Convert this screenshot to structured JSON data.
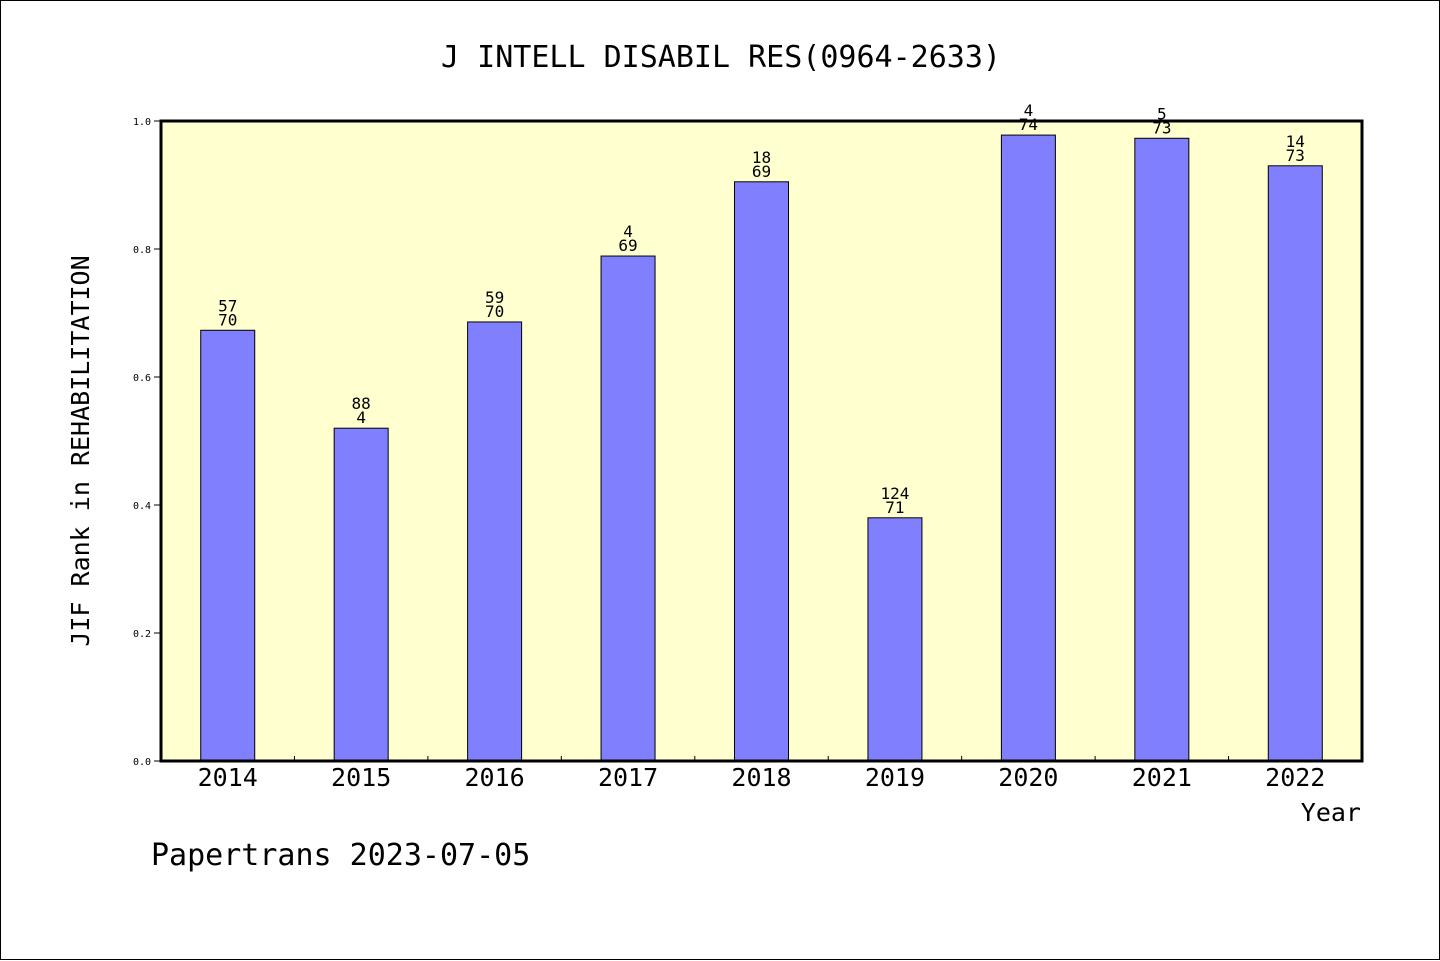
{
  "chart_data": {
    "type": "bar",
    "title": "J INTELL DISABIL RES(0964-2633)",
    "ylabel": "JIF Rank in REHABILITATION",
    "xlabel": "Year",
    "ylim": [
      0,
      1
    ],
    "yticks": [
      0.0,
      0.2,
      0.4,
      0.6,
      0.8,
      1.0
    ],
    "ytick_labels": [
      "0.0",
      "0.2",
      "0.4",
      "0.6",
      "0.8",
      "1.0"
    ],
    "categories": [
      "2014",
      "2015",
      "2016",
      "2017",
      "2018",
      "2019",
      "2020",
      "2021",
      "2022"
    ],
    "values": [
      0.673,
      0.52,
      0.686,
      0.789,
      0.905,
      0.38,
      0.978,
      0.973,
      0.93
    ],
    "bar_labels": [
      [
        "57",
        "70"
      ],
      [
        "88",
        "4"
      ],
      [
        "59",
        "70"
      ],
      [
        "4",
        "69"
      ],
      [
        "18",
        "69"
      ],
      [
        "124",
        "71"
      ],
      [
        "4",
        "74"
      ],
      [
        "5",
        "73"
      ],
      [
        "14",
        "73"
      ]
    ],
    "grid": false,
    "colors": {
      "bar": "#8080ff",
      "plot_background": "#ffffd0",
      "axis": "#000000"
    }
  },
  "footer": {
    "text": "Papertrans 2023-07-05"
  }
}
